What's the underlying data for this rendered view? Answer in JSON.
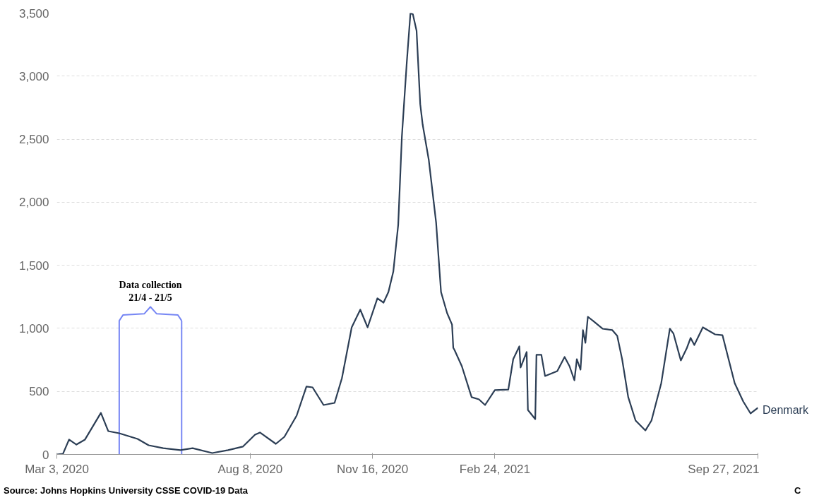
{
  "chart_data": {
    "type": "line",
    "x": [
      "2020-03-03",
      "2020-03-08",
      "2020-03-13",
      "2020-03-19",
      "2020-03-26",
      "2020-04-08",
      "2020-04-14",
      "2020-04-23",
      "2020-05-08",
      "2020-05-17",
      "2020-05-29",
      "2020-06-12",
      "2020-06-22",
      "2020-07-08",
      "2020-07-21",
      "2020-08-02",
      "2020-08-12",
      "2020-08-16",
      "2020-08-29",
      "2020-09-05",
      "2020-09-15",
      "2020-09-23",
      "2020-09-28",
      "2020-10-07",
      "2020-10-16",
      "2020-10-22",
      "2020-10-30",
      "2020-11-06",
      "2020-11-12",
      "2020-11-20",
      "2020-11-25",
      "2020-11-29",
      "2020-12-03",
      "2020-12-07",
      "2020-12-10",
      "2020-12-14",
      "2020-12-17",
      "2020-12-19",
      "2020-12-22",
      "2020-12-25",
      "2020-12-27",
      "2021-01-01",
      "2021-01-07",
      "2021-01-11",
      "2021-01-16",
      "2021-01-20",
      "2021-01-21",
      "2021-01-22",
      "2021-01-28",
      "2021-02-05",
      "2021-02-11",
      "2021-02-16",
      "2021-02-24",
      "2021-03-07",
      "2021-03-11",
      "2021-03-16",
      "2021-03-17",
      "2021-03-22",
      "2021-03-23",
      "2021-03-29",
      "2021-03-30",
      "2021-04-03",
      "2021-04-06",
      "2021-04-16",
      "2021-04-22",
      "2021-04-26",
      "2021-04-30",
      "2021-05-02",
      "2021-05-05",
      "2021-05-07",
      "2021-05-09",
      "2021-05-11",
      "2021-05-16",
      "2021-05-23",
      "2021-05-31",
      "2021-06-04",
      "2021-06-08",
      "2021-06-13",
      "2021-06-19",
      "2021-06-27",
      "2021-07-02",
      "2021-07-10",
      "2021-07-17",
      "2021-07-20",
      "2021-07-26",
      "2021-07-31",
      "2021-08-03",
      "2021-08-06",
      "2021-08-13",
      "2021-08-23",
      "2021-08-29",
      "2021-09-08",
      "2021-09-15",
      "2021-09-21",
      "2021-09-27"
    ],
    "series": [
      {
        "name": "Denmark",
        "color": "#2c3e55",
        "values": [
          0,
          5,
          118,
          78,
          118,
          330,
          185,
          168,
          123,
          73,
          50,
          34,
          50,
          11,
          34,
          62,
          157,
          174,
          84,
          140,
          308,
          538,
          532,
          392,
          409,
          605,
          1008,
          1148,
          1008,
          1238,
          1204,
          1288,
          1450,
          1820,
          2520,
          3108,
          3500,
          3490,
          3360,
          2778,
          2615,
          2335,
          1837,
          1288,
          1120,
          1030,
          846,
          829,
          700,
          454,
          437,
          392,
          510,
          515,
          756,
          857,
          689,
          812,
          353,
          280,
          790,
          790,
          622,
          661,
          773,
          700,
          588,
          756,
          672,
          986,
          885,
          1092,
          1053,
          997,
          986,
          941,
          756,
          454,
          269,
          190,
          269,
          566,
          997,
          958,
          745,
          846,
          924,
          868,
          1008,
          952,
          946,
          566,
          420,
          325,
          370
        ]
      }
    ],
    "xlim": [
      "2020-03-03",
      "2021-09-27"
    ],
    "xticks": [
      {
        "value": "2020-03-03",
        "label": "Mar 3, 2020"
      },
      {
        "value": "2020-08-08",
        "label": "Aug 8, 2020"
      },
      {
        "value": "2020-11-16",
        "label": "Nov 16, 2020"
      },
      {
        "value": "2021-02-24",
        "label": "Feb 24, 2021"
      },
      {
        "value": "2021-09-27",
        "label": "Sep 27, 2021"
      }
    ],
    "ylim": [
      0,
      3500
    ],
    "yticks": [
      0,
      {
        "value": 500,
        "label": "500"
      },
      {
        "value": 1000,
        "label": "1,000"
      },
      {
        "value": 1500,
        "label": "1,500"
      },
      {
        "value": 2000,
        "label": "2,000"
      },
      {
        "value": 2500,
        "label": "2,500"
      },
      {
        "value": 3000,
        "label": "3,000"
      },
      {
        "value": 3500,
        "label": "3,500"
      }
    ],
    "grid": "y",
    "ref_lines": [
      {
        "axis": "x",
        "value": "2020-04-23",
        "color": "#4a5ff0"
      },
      {
        "axis": "x",
        "value": "2020-06-13",
        "color": "#4a5ff0"
      }
    ],
    "annotations": [
      "Data collection\n21/4 - 21/5",
      "Source: Johns Hopkins University CSSE COVID-19 Data",
      "C"
    ]
  }
}
